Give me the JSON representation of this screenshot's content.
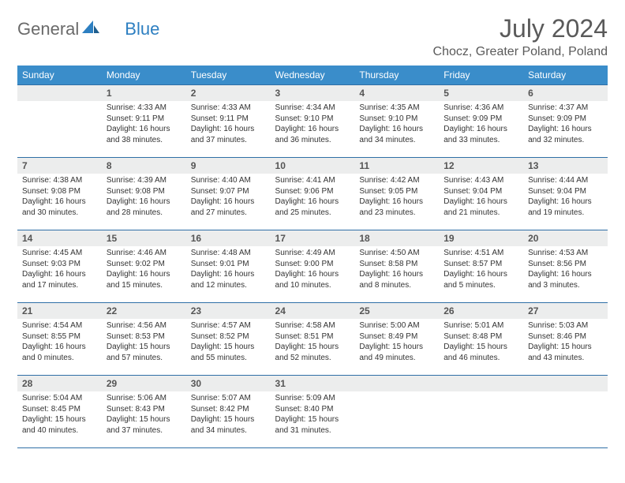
{
  "logo": {
    "part1": "General",
    "part2": "Blue"
  },
  "title": "July 2024",
  "location": "Chocz, Greater Poland, Poland",
  "colors": {
    "header_bg": "#3a8dca",
    "header_text": "#ffffff",
    "rule": "#2f6fa6",
    "daynum_bg": "#eceded",
    "logo_gray": "#6a6a6a",
    "logo_blue": "#2d7fc1"
  },
  "day_headers": [
    "Sunday",
    "Monday",
    "Tuesday",
    "Wednesday",
    "Thursday",
    "Friday",
    "Saturday"
  ],
  "weeks": [
    [
      {
        "n": "",
        "sunrise": "",
        "sunset": "",
        "daylight": ""
      },
      {
        "n": "1",
        "sunrise": "Sunrise: 4:33 AM",
        "sunset": "Sunset: 9:11 PM",
        "daylight": "Daylight: 16 hours and 38 minutes."
      },
      {
        "n": "2",
        "sunrise": "Sunrise: 4:33 AM",
        "sunset": "Sunset: 9:11 PM",
        "daylight": "Daylight: 16 hours and 37 minutes."
      },
      {
        "n": "3",
        "sunrise": "Sunrise: 4:34 AM",
        "sunset": "Sunset: 9:10 PM",
        "daylight": "Daylight: 16 hours and 36 minutes."
      },
      {
        "n": "4",
        "sunrise": "Sunrise: 4:35 AM",
        "sunset": "Sunset: 9:10 PM",
        "daylight": "Daylight: 16 hours and 34 minutes."
      },
      {
        "n": "5",
        "sunrise": "Sunrise: 4:36 AM",
        "sunset": "Sunset: 9:09 PM",
        "daylight": "Daylight: 16 hours and 33 minutes."
      },
      {
        "n": "6",
        "sunrise": "Sunrise: 4:37 AM",
        "sunset": "Sunset: 9:09 PM",
        "daylight": "Daylight: 16 hours and 32 minutes."
      }
    ],
    [
      {
        "n": "7",
        "sunrise": "Sunrise: 4:38 AM",
        "sunset": "Sunset: 9:08 PM",
        "daylight": "Daylight: 16 hours and 30 minutes."
      },
      {
        "n": "8",
        "sunrise": "Sunrise: 4:39 AM",
        "sunset": "Sunset: 9:08 PM",
        "daylight": "Daylight: 16 hours and 28 minutes."
      },
      {
        "n": "9",
        "sunrise": "Sunrise: 4:40 AM",
        "sunset": "Sunset: 9:07 PM",
        "daylight": "Daylight: 16 hours and 27 minutes."
      },
      {
        "n": "10",
        "sunrise": "Sunrise: 4:41 AM",
        "sunset": "Sunset: 9:06 PM",
        "daylight": "Daylight: 16 hours and 25 minutes."
      },
      {
        "n": "11",
        "sunrise": "Sunrise: 4:42 AM",
        "sunset": "Sunset: 9:05 PM",
        "daylight": "Daylight: 16 hours and 23 minutes."
      },
      {
        "n": "12",
        "sunrise": "Sunrise: 4:43 AM",
        "sunset": "Sunset: 9:04 PM",
        "daylight": "Daylight: 16 hours and 21 minutes."
      },
      {
        "n": "13",
        "sunrise": "Sunrise: 4:44 AM",
        "sunset": "Sunset: 9:04 PM",
        "daylight": "Daylight: 16 hours and 19 minutes."
      }
    ],
    [
      {
        "n": "14",
        "sunrise": "Sunrise: 4:45 AM",
        "sunset": "Sunset: 9:03 PM",
        "daylight": "Daylight: 16 hours and 17 minutes."
      },
      {
        "n": "15",
        "sunrise": "Sunrise: 4:46 AM",
        "sunset": "Sunset: 9:02 PM",
        "daylight": "Daylight: 16 hours and 15 minutes."
      },
      {
        "n": "16",
        "sunrise": "Sunrise: 4:48 AM",
        "sunset": "Sunset: 9:01 PM",
        "daylight": "Daylight: 16 hours and 12 minutes."
      },
      {
        "n": "17",
        "sunrise": "Sunrise: 4:49 AM",
        "sunset": "Sunset: 9:00 PM",
        "daylight": "Daylight: 16 hours and 10 minutes."
      },
      {
        "n": "18",
        "sunrise": "Sunrise: 4:50 AM",
        "sunset": "Sunset: 8:58 PM",
        "daylight": "Daylight: 16 hours and 8 minutes."
      },
      {
        "n": "19",
        "sunrise": "Sunrise: 4:51 AM",
        "sunset": "Sunset: 8:57 PM",
        "daylight": "Daylight: 16 hours and 5 minutes."
      },
      {
        "n": "20",
        "sunrise": "Sunrise: 4:53 AM",
        "sunset": "Sunset: 8:56 PM",
        "daylight": "Daylight: 16 hours and 3 minutes."
      }
    ],
    [
      {
        "n": "21",
        "sunrise": "Sunrise: 4:54 AM",
        "sunset": "Sunset: 8:55 PM",
        "daylight": "Daylight: 16 hours and 0 minutes."
      },
      {
        "n": "22",
        "sunrise": "Sunrise: 4:56 AM",
        "sunset": "Sunset: 8:53 PM",
        "daylight": "Daylight: 15 hours and 57 minutes."
      },
      {
        "n": "23",
        "sunrise": "Sunrise: 4:57 AM",
        "sunset": "Sunset: 8:52 PM",
        "daylight": "Daylight: 15 hours and 55 minutes."
      },
      {
        "n": "24",
        "sunrise": "Sunrise: 4:58 AM",
        "sunset": "Sunset: 8:51 PM",
        "daylight": "Daylight: 15 hours and 52 minutes."
      },
      {
        "n": "25",
        "sunrise": "Sunrise: 5:00 AM",
        "sunset": "Sunset: 8:49 PM",
        "daylight": "Daylight: 15 hours and 49 minutes."
      },
      {
        "n": "26",
        "sunrise": "Sunrise: 5:01 AM",
        "sunset": "Sunset: 8:48 PM",
        "daylight": "Daylight: 15 hours and 46 minutes."
      },
      {
        "n": "27",
        "sunrise": "Sunrise: 5:03 AM",
        "sunset": "Sunset: 8:46 PM",
        "daylight": "Daylight: 15 hours and 43 minutes."
      }
    ],
    [
      {
        "n": "28",
        "sunrise": "Sunrise: 5:04 AM",
        "sunset": "Sunset: 8:45 PM",
        "daylight": "Daylight: 15 hours and 40 minutes."
      },
      {
        "n": "29",
        "sunrise": "Sunrise: 5:06 AM",
        "sunset": "Sunset: 8:43 PM",
        "daylight": "Daylight: 15 hours and 37 minutes."
      },
      {
        "n": "30",
        "sunrise": "Sunrise: 5:07 AM",
        "sunset": "Sunset: 8:42 PM",
        "daylight": "Daylight: 15 hours and 34 minutes."
      },
      {
        "n": "31",
        "sunrise": "Sunrise: 5:09 AM",
        "sunset": "Sunset: 8:40 PM",
        "daylight": "Daylight: 15 hours and 31 minutes."
      },
      {
        "n": "",
        "sunrise": "",
        "sunset": "",
        "daylight": ""
      },
      {
        "n": "",
        "sunrise": "",
        "sunset": "",
        "daylight": ""
      },
      {
        "n": "",
        "sunrise": "",
        "sunset": "",
        "daylight": ""
      }
    ]
  ]
}
